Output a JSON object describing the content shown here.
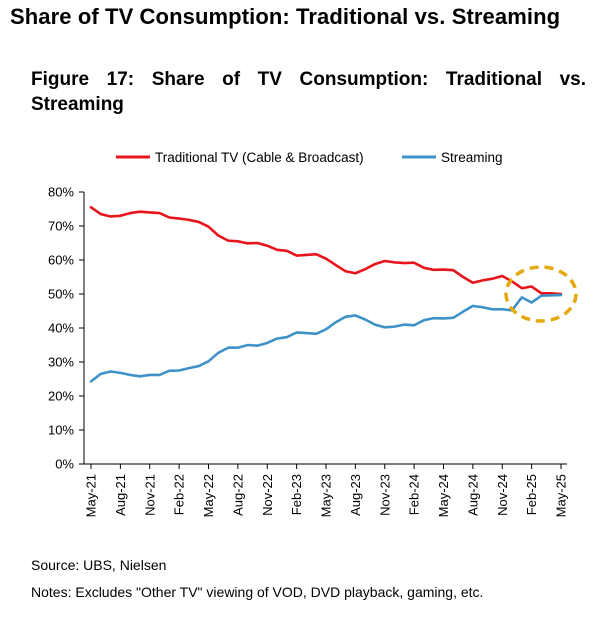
{
  "header": {
    "page_title": "Share of TV Consumption: Traditional vs. Streaming",
    "figure_title": "Figure 17: Share of TV Consumption: Traditional vs. Streaming"
  },
  "footer": {
    "source": "Source: UBS, Nielsen",
    "notes": "Notes: Excludes \"Other TV\" viewing of VOD, DVD playback, gaming, etc."
  },
  "colors": {
    "traditional": "#e8141c",
    "streaming": "#3f92c8",
    "highlight": "#e5a910"
  },
  "chart_data": {
    "type": "line",
    "title": "",
    "xlabel": "",
    "ylabel": "",
    "ylim": [
      0,
      0.8
    ],
    "yticks": [
      "0%",
      "10%",
      "20%",
      "30%",
      "40%",
      "50%",
      "60%",
      "70%",
      "80%"
    ],
    "grid": false,
    "legend_position": "top",
    "annotation": "dashed ellipse highlighting crossover around Feb-25",
    "x": [
      "May-21",
      "Jun-21",
      "Jul-21",
      "Aug-21",
      "Sep-21",
      "Oct-21",
      "Nov-21",
      "Dec-21",
      "Jan-22",
      "Feb-22",
      "Mar-22",
      "Apr-22",
      "May-22",
      "Jun-22",
      "Jul-22",
      "Aug-22",
      "Sep-22",
      "Oct-22",
      "Nov-22",
      "Dec-22",
      "Jan-23",
      "Feb-23",
      "Mar-23",
      "Apr-23",
      "May-23",
      "Jun-23",
      "Jul-23",
      "Aug-23",
      "Sep-23",
      "Oct-23",
      "Nov-23",
      "Dec-23",
      "Jan-24",
      "Feb-24",
      "Mar-24",
      "Apr-24",
      "May-24",
      "Jun-24",
      "Jul-24",
      "Aug-24",
      "Sep-24",
      "Oct-24",
      "Nov-24",
      "Dec-24",
      "Jan-25",
      "Feb-25",
      "Mar-25",
      "Apr-25",
      "May-25"
    ],
    "x_tick_labels": [
      "May-21",
      "Aug-21",
      "Nov-21",
      "Feb-22",
      "May-22",
      "Aug-22",
      "Nov-22",
      "Feb-23",
      "May-23",
      "Aug-23",
      "Nov-23",
      "Feb-24",
      "May-24",
      "Aug-24",
      "Nov-24",
      "Feb-25",
      "May-25"
    ],
    "series": [
      {
        "name": "Traditional TV (Cable & Broadcast)",
        "color": "#e8141c",
        "values": [
          0.755,
          0.735,
          0.728,
          0.73,
          0.738,
          0.742,
          0.74,
          0.738,
          0.725,
          0.722,
          0.718,
          0.712,
          0.698,
          0.672,
          0.657,
          0.655,
          0.649,
          0.65,
          0.642,
          0.63,
          0.627,
          0.613,
          0.615,
          0.617,
          0.604,
          0.585,
          0.567,
          0.561,
          0.573,
          0.588,
          0.597,
          0.593,
          0.591,
          0.592,
          0.577,
          0.571,
          0.572,
          0.57,
          0.55,
          0.533,
          0.54,
          0.545,
          0.553,
          0.537,
          0.517,
          0.522,
          0.502,
          0.502,
          0.5
        ]
      },
      {
        "name": "Streaming",
        "color": "#3f92c8",
        "values": [
          0.243,
          0.265,
          0.272,
          0.268,
          0.262,
          0.258,
          0.262,
          0.262,
          0.274,
          0.275,
          0.282,
          0.288,
          0.302,
          0.327,
          0.342,
          0.342,
          0.35,
          0.348,
          0.356,
          0.369,
          0.373,
          0.387,
          0.385,
          0.383,
          0.396,
          0.417,
          0.433,
          0.437,
          0.425,
          0.41,
          0.402,
          0.404,
          0.41,
          0.408,
          0.423,
          0.429,
          0.428,
          0.43,
          0.448,
          0.465,
          0.461,
          0.455,
          0.455,
          0.452,
          0.49,
          0.475,
          0.495,
          0.496,
          0.497
        ]
      }
    ]
  }
}
